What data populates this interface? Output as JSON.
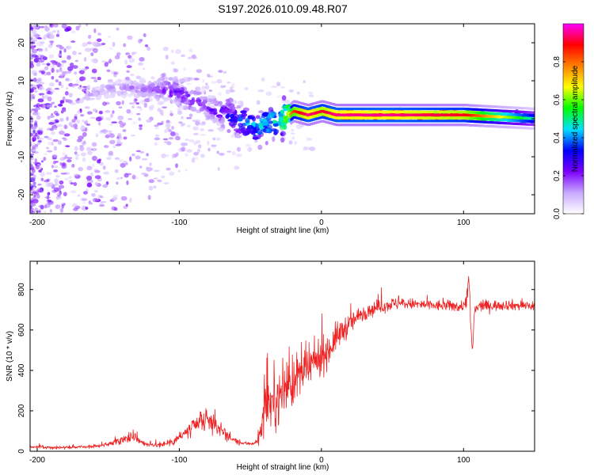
{
  "title": "S197.2026.010.09.48.R07",
  "chart_data": [
    {
      "type": "heatmap",
      "name": "spectrogram",
      "xlabel": "Height of straight line (km)",
      "ylabel": "Frequency (Hz)",
      "xlim": [
        -205,
        150
      ],
      "ylim": [
        -25,
        25
      ],
      "xticks": [
        -200,
        -100,
        0,
        100
      ],
      "yticks": [
        -20,
        -10,
        0,
        10,
        20
      ],
      "ridge": {
        "x": [
          -205,
          -150,
          -120,
          -100,
          -80,
          -60,
          -45,
          -30,
          -20,
          -10,
          0,
          10,
          50,
          100,
          150
        ],
        "freq_hz": [
          0,
          8,
          8,
          7,
          3,
          0,
          -2,
          -1,
          2,
          1,
          2,
          1,
          1,
          1,
          0
        ],
        "peak_amplitude": [
          0.05,
          0.15,
          0.2,
          0.3,
          0.25,
          0.4,
          0.5,
          0.55,
          0.85,
          0.95,
          0.9,
          0.95,
          0.95,
          0.9,
          0.45
        ]
      },
      "colorbar": {
        "label": "Normalized spectral amplitude",
        "range": [
          0,
          1
        ],
        "ticks": [
          "0.0",
          "0.2",
          "0.4",
          "0.6",
          "0.8"
        ],
        "colors": [
          "#ffffff",
          "#c8a8ff",
          "#7b00ff",
          "#0000ff",
          "#00e0ff",
          "#00ff00",
          "#ffff00",
          "#ff8000",
          "#ff0000",
          "#ff00ff"
        ]
      }
    },
    {
      "type": "line",
      "name": "snr",
      "xlabel": "Height of straight line (km)",
      "ylabel": "SNR (10 * v/v)",
      "xlim": [
        -205,
        150
      ],
      "ylim": [
        0,
        940
      ],
      "xticks": [
        -200,
        -100,
        0,
        100
      ],
      "yticks": [
        0,
        200,
        400,
        600,
        800
      ],
      "color": "#ee2222",
      "series": [
        {
          "name": "SNR",
          "x": [
            -205,
            -190,
            -175,
            -160,
            -150,
            -140,
            -133,
            -125,
            -118,
            -108,
            -100,
            -92,
            -85,
            -78,
            -72,
            -65,
            -58,
            -50,
            -45,
            -42,
            -40,
            -37,
            -34,
            -30,
            -25,
            -20,
            -15,
            -10,
            -5,
            0,
            5,
            10,
            15,
            20,
            25,
            30,
            35,
            40,
            45,
            50,
            60,
            70,
            80,
            90,
            100,
            104,
            106,
            108,
            112,
            120,
            130,
            140,
            150
          ],
          "y": [
            22,
            18,
            20,
            23,
            35,
            60,
            75,
            40,
            28,
            40,
            70,
            105,
            140,
            150,
            115,
            70,
            40,
            38,
            45,
            120,
            200,
            250,
            230,
            260,
            330,
            340,
            380,
            400,
            440,
            470,
            500,
            560,
            600,
            630,
            660,
            690,
            700,
            715,
            720,
            730,
            730,
            725,
            720,
            720,
            715,
            820,
            480,
            700,
            720,
            720,
            725,
            720,
            720
          ],
          "noise": [
            8,
            8,
            8,
            8,
            12,
            25,
            30,
            15,
            10,
            20,
            35,
            50,
            55,
            60,
            45,
            25,
            12,
            10,
            20,
            70,
            110,
            140,
            130,
            140,
            150,
            140,
            130,
            120,
            110,
            100,
            90,
            80,
            70,
            60,
            50,
            45,
            40,
            40,
            35,
            35,
            30,
            30,
            30,
            30,
            30,
            90,
            60,
            35,
            30,
            30,
            28,
            28,
            28
          ]
        }
      ]
    }
  ]
}
